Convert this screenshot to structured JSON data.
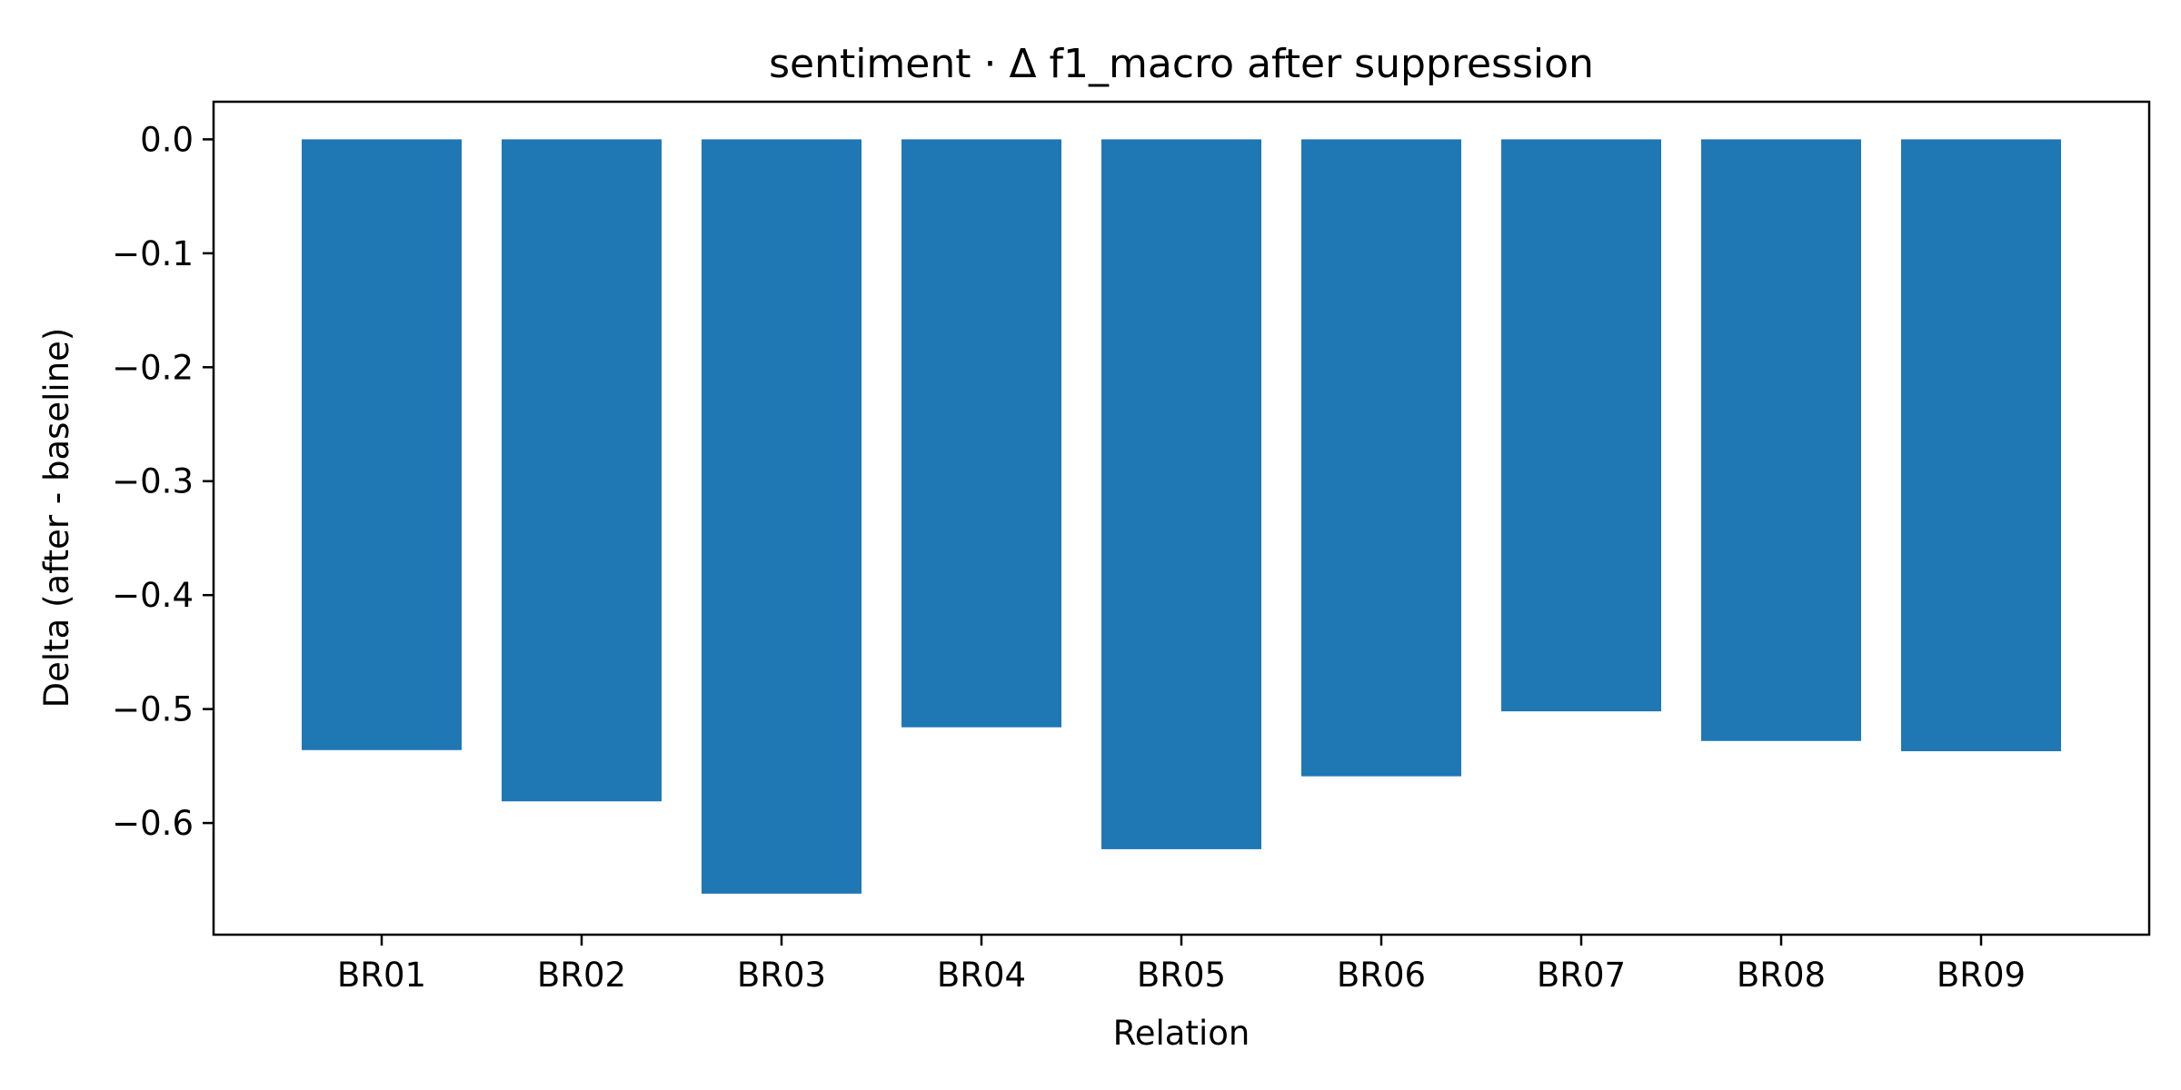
{
  "chart_data": {
    "type": "bar",
    "title": "sentiment · Δ f1_macro after suppression",
    "xlabel": "Relation",
    "ylabel": "Delta (after - baseline)",
    "categories": [
      "BR01",
      "BR02",
      "BR03",
      "BR04",
      "BR05",
      "BR06",
      "BR07",
      "BR08",
      "BR09"
    ],
    "values": [
      -0.536,
      -0.581,
      -0.662,
      -0.516,
      -0.623,
      -0.559,
      -0.502,
      -0.528,
      -0.537
    ],
    "ylim": [
      -0.698,
      0.033
    ],
    "yticks": [
      0.0,
      -0.1,
      -0.2,
      -0.3,
      -0.4,
      -0.5,
      -0.6
    ],
    "ytick_labels": [
      "0.0",
      "−0.1",
      "−0.2",
      "−0.3",
      "−0.4",
      "−0.5",
      "−0.6"
    ],
    "bar_color": "#1f77b4",
    "grid": false,
    "legend": "none"
  }
}
